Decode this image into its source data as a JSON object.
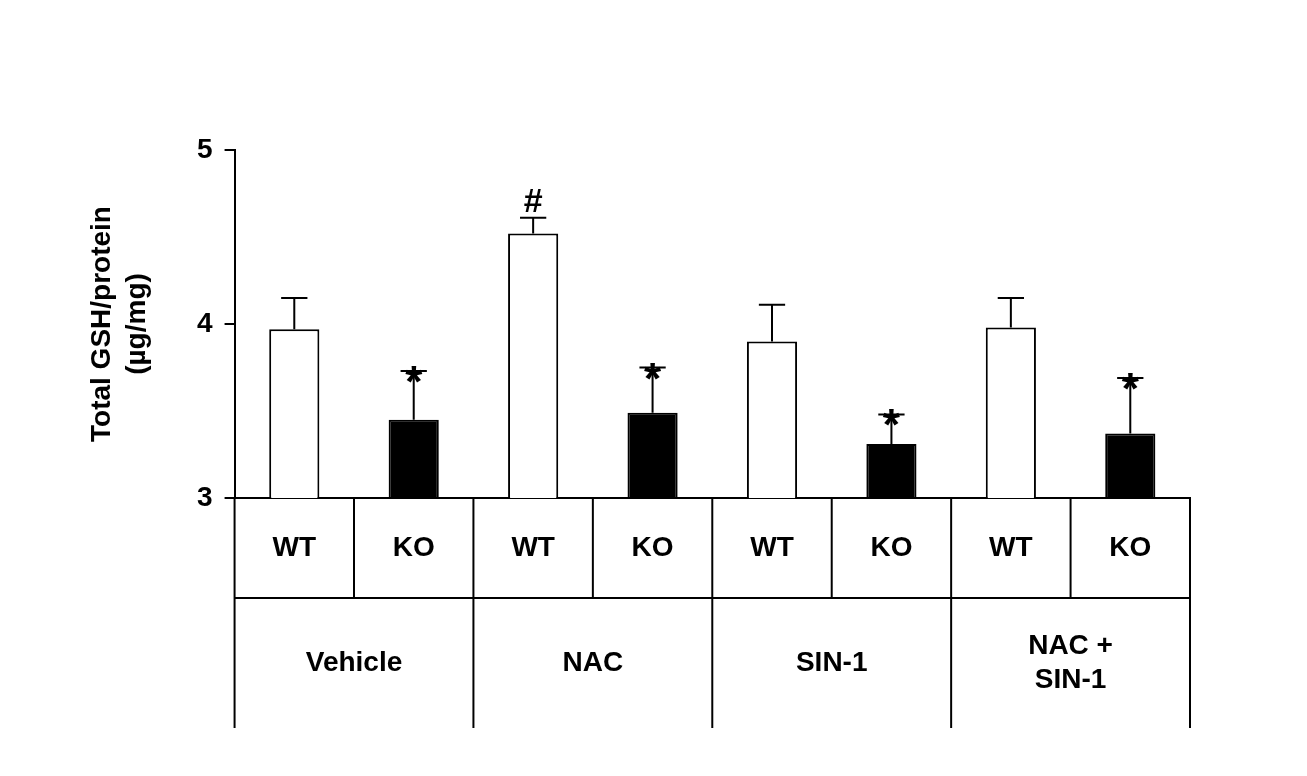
{
  "chart_data": {
    "type": "bar",
    "y_label": [
      "Total GSH/protein",
      "(µg/mg)"
    ],
    "categories": [
      "WT",
      "KO",
      "WT",
      "KO",
      "WT",
      "KO",
      "WT",
      "KO"
    ],
    "groups": [
      "Vehicle",
      "Vehicle",
      "NAC",
      "NAC",
      "SIN-1",
      "SIN-1",
      [
        "NAC +",
        "SIN-1"
      ],
      [
        "NAC +",
        "SIN-1"
      ]
    ],
    "values": [
      3.97,
      3.45,
      4.52,
      3.49,
      3.9,
      3.31,
      3.98,
      3.37
    ],
    "errors": [
      0.18,
      0.28,
      0.09,
      0.26,
      0.21,
      0.17,
      0.17,
      0.32
    ],
    "significance": [
      null,
      "*",
      "#",
      "*",
      null,
      "*",
      null,
      "*"
    ],
    "colors": [
      "#ffffff",
      "#000000",
      "#ffffff",
      "#000000",
      "#ffffff",
      "#000000",
      "#ffffff",
      "#000000"
    ],
    "ylim": [
      3,
      5
    ],
    "yticks": [
      3,
      4,
      5
    ],
    "grid": false
  }
}
